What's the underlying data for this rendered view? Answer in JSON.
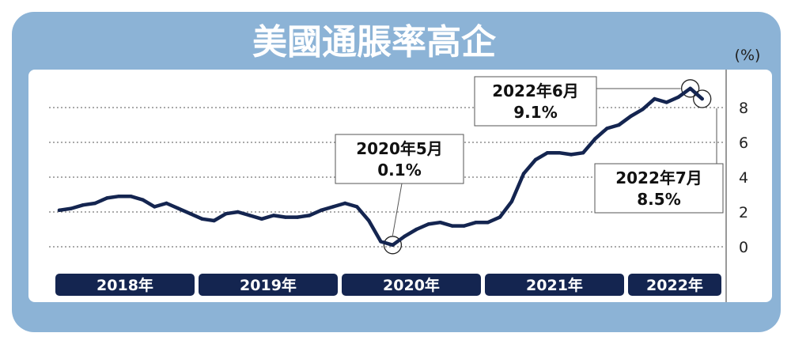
{
  "colors": {
    "frame": "#8cb3d6",
    "panel": "#ffffff",
    "line": "#142550",
    "year_bar": "#142550",
    "year_text": "#ffffff",
    "grid": "#555555",
    "title_text": "#ffffff"
  },
  "chart_data": {
    "type": "line",
    "title": "美國通脹率高企",
    "unit_label": "(%)",
    "ylim": [
      0,
      9.5
    ],
    "y_ticks": [
      "0",
      "2",
      "4",
      "6",
      "8"
    ],
    "grid": "dotted-horizontal",
    "year_labels": [
      "2018年",
      "2019年",
      "2020年",
      "2021年",
      "2022年"
    ],
    "series": [
      {
        "x": [
          "2018-01",
          "2018-02",
          "2018-03",
          "2018-04",
          "2018-05",
          "2018-06",
          "2018-07",
          "2018-08",
          "2018-09",
          "2018-10",
          "2018-11",
          "2018-12",
          "2019-01",
          "2019-02",
          "2019-03",
          "2019-04",
          "2019-05",
          "2019-06",
          "2019-07",
          "2019-08",
          "2019-09",
          "2019-10",
          "2019-11",
          "2019-12",
          "2020-01",
          "2020-02",
          "2020-03",
          "2020-04",
          "2020-05",
          "2020-06",
          "2020-07",
          "2020-08",
          "2020-09",
          "2020-10",
          "2020-11",
          "2020-12",
          "2021-01",
          "2021-02",
          "2021-03",
          "2021-04",
          "2021-05",
          "2021-06",
          "2021-07",
          "2021-08",
          "2021-09",
          "2021-10",
          "2021-11",
          "2021-12",
          "2022-01",
          "2022-02",
          "2022-03",
          "2022-04",
          "2022-05",
          "2022-06",
          "2022-07"
        ],
        "values": [
          2.1,
          2.2,
          2.4,
          2.5,
          2.8,
          2.9,
          2.9,
          2.7,
          2.3,
          2.5,
          2.2,
          1.9,
          1.6,
          1.5,
          1.9,
          2.0,
          1.8,
          1.6,
          1.8,
          1.7,
          1.7,
          1.8,
          2.1,
          2.3,
          2.5,
          2.3,
          1.5,
          0.3,
          0.1,
          0.6,
          1.0,
          1.3,
          1.4,
          1.2,
          1.2,
          1.4,
          1.4,
          1.7,
          2.6,
          4.2,
          5.0,
          5.4,
          5.4,
          5.3,
          5.4,
          6.2,
          6.8,
          7.0,
          7.5,
          7.9,
          8.5,
          8.3,
          8.6,
          9.1,
          8.5
        ]
      }
    ],
    "annotations": [
      {
        "line1": "2020年5月",
        "line2": "0.1%",
        "x": "2020-05",
        "y": 0.1
      },
      {
        "line1": "2022年6月",
        "line2": "9.1%",
        "x": "2022-06",
        "y": 9.1
      },
      {
        "line1": "2022年7月",
        "line2": "8.5%",
        "x": "2022-07",
        "y": 8.5
      }
    ]
  }
}
